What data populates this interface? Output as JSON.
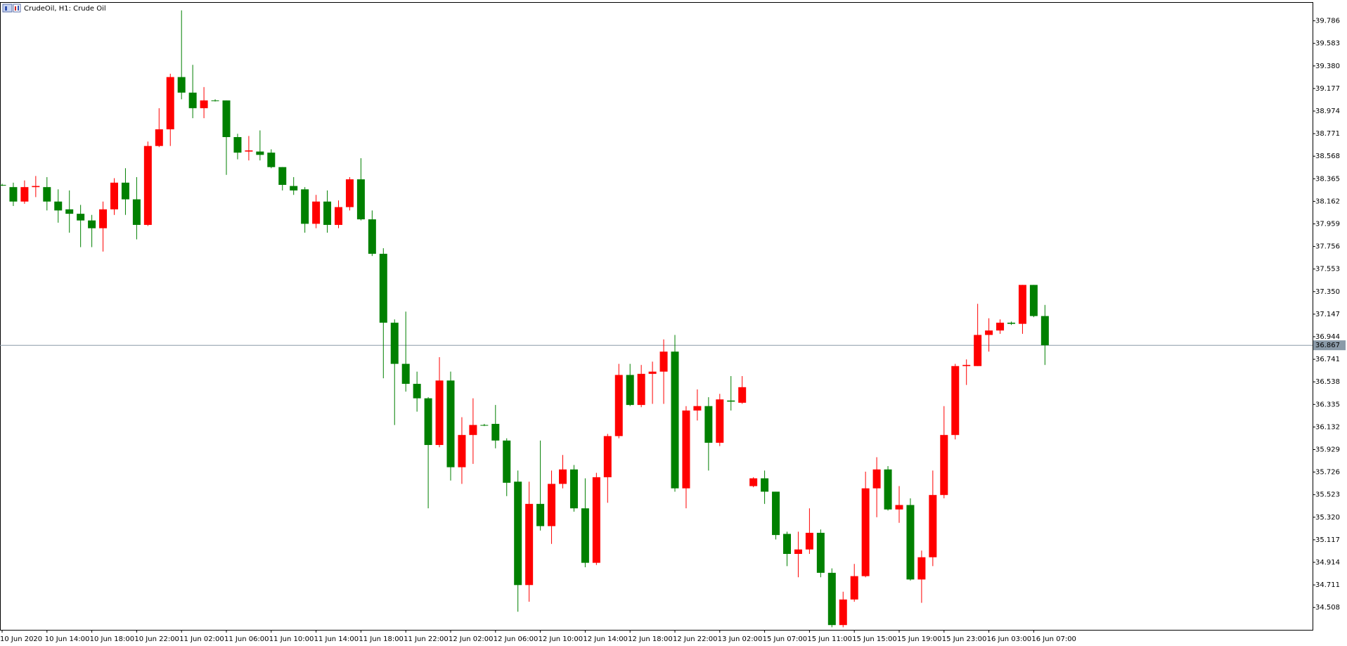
{
  "chart_data": {
    "type": "candlestick",
    "title": "CrudeOil, H1:  Crude Oil",
    "up_color": "#ff0000",
    "down_color": "#008000",
    "categories": [
      "10 Jun 2020",
      null,
      null,
      null,
      "10 Jun 14:00",
      null,
      null,
      null,
      "10 Jun 18:00",
      null,
      null,
      null,
      "10 Jun 22:00",
      null,
      null,
      null,
      "11 Jun 02:00",
      null,
      null,
      null,
      "11 Jun 06:00",
      null,
      null,
      null,
      "11 Jun 10:00",
      null,
      null,
      null,
      "11 Jun 14:00",
      null,
      null,
      null,
      "11 Jun 18:00",
      null,
      null,
      null,
      "11 Jun 22:00",
      null,
      null,
      null,
      "12 Jun 02:00",
      null,
      null,
      null,
      "12 Jun 06:00",
      null,
      null,
      null,
      "12 Jun 10:00",
      null,
      null,
      null,
      "12 Jun 14:00",
      null,
      null,
      null,
      "12 Jun 18:00",
      null,
      null,
      null,
      "12 Jun 22:00",
      null,
      null,
      null,
      "13 Jun 02:00",
      null,
      null,
      null,
      "15 Jun 07:00",
      null,
      null,
      null,
      "15 Jun 11:00",
      null,
      null,
      null,
      "15 Jun 15:00",
      null,
      null,
      null,
      "15 Jun 19:00",
      null,
      null,
      null,
      "15 Jun 23:00",
      null,
      null,
      null,
      "16 Jun 03:00",
      null,
      null,
      null,
      "16 Jun 07:00",
      null
    ],
    "open": [
      38.31,
      38.29,
      38.16,
      38.29,
      38.29,
      38.16,
      38.09,
      38.05,
      37.99,
      37.92,
      38.09,
      38.33,
      38.18,
      37.95,
      38.66,
      38.81,
      39.28,
      39.14,
      39.0,
      39.07,
      39.07,
      38.74,
      38.61,
      38.61,
      38.6,
      38.47,
      38.3,
      38.27,
      37.96,
      38.16,
      37.95,
      38.11,
      38.36,
      38.0,
      37.69,
      37.07,
      36.7,
      36.52,
      36.39,
      35.97,
      36.55,
      35.77,
      36.06,
      36.15,
      36.16,
      36.01,
      35.64,
      34.71,
      35.44,
      35.24,
      35.62,
      35.75,
      35.4,
      34.91,
      35.68,
      36.05,
      36.6,
      36.33,
      36.61,
      36.63,
      36.81,
      35.58,
      36.28,
      36.32,
      35.99,
      36.37,
      36.35,
      35.6,
      35.67,
      35.55,
      35.17,
      34.99,
      35.03,
      35.18,
      34.82,
      34.35,
      34.58,
      34.79,
      35.58,
      35.75,
      35.39,
      35.43,
      34.76,
      34.96,
      35.52,
      36.06,
      36.68,
      36.68,
      36.96,
      37.0,
      37.07,
      37.06,
      37.41,
      37.13
    ],
    "high": [
      38.32,
      38.33,
      38.35,
      38.39,
      38.38,
      38.27,
      38.26,
      38.13,
      38.04,
      38.16,
      38.37,
      38.46,
      38.38,
      38.7,
      39.0,
      39.31,
      39.88,
      39.39,
      39.19,
      39.08,
      39.07,
      38.77,
      38.75,
      38.8,
      38.63,
      38.47,
      38.38,
      38.29,
      38.22,
      38.26,
      38.17,
      38.38,
      38.55,
      38.08,
      37.74,
      37.1,
      37.17,
      36.63,
      36.4,
      36.76,
      36.63,
      36.22,
      36.39,
      36.16,
      36.33,
      36.03,
      35.74,
      35.64,
      36.01,
      35.74,
      35.88,
      35.79,
      35.67,
      35.72,
      36.07,
      36.7,
      36.7,
      36.69,
      36.72,
      36.92,
      36.96,
      36.32,
      36.47,
      36.4,
      36.43,
      36.59,
      36.59,
      35.68,
      35.74,
      35.55,
      35.19,
      35.19,
      35.4,
      35.21,
      34.86,
      34.65,
      34.9,
      35.73,
      35.86,
      35.78,
      35.6,
      35.49,
      35.02,
      35.74,
      36.32,
      36.7,
      36.74,
      37.24,
      37.11,
      37.1,
      37.08,
      37.41,
      37.41,
      37.23
    ],
    "low": [
      38.3,
      38.12,
      38.14,
      38.2,
      38.08,
      37.97,
      37.88,
      37.75,
      37.75,
      37.71,
      38.04,
      38.04,
      37.82,
      37.94,
      38.65,
      38.66,
      39.08,
      38.91,
      38.91,
      39.06,
      38.4,
      38.54,
      38.53,
      38.53,
      38.46,
      38.26,
      38.22,
      37.88,
      37.92,
      37.88,
      37.92,
      38.08,
      37.99,
      37.67,
      36.57,
      36.15,
      36.45,
      36.27,
      35.4,
      35.95,
      35.65,
      35.62,
      35.8,
      36.14,
      35.94,
      35.51,
      34.47,
      34.56,
      35.2,
      35.08,
      35.58,
      35.37,
      34.87,
      34.89,
      35.45,
      36.03,
      36.32,
      36.31,
      36.34,
      36.34,
      35.55,
      35.4,
      36.19,
      35.74,
      35.96,
      36.28,
      36.34,
      35.59,
      35.44,
      35.12,
      34.88,
      34.78,
      34.99,
      34.78,
      34.33,
      34.33,
      34.56,
      34.78,
      35.32,
      35.38,
      35.27,
      34.75,
      34.55,
      34.88,
      35.49,
      36.02,
      36.51,
      36.68,
      36.81,
      36.97,
      37.05,
      36.97,
      37.12,
      36.69
    ],
    "close": [
      38.31,
      38.16,
      38.29,
      38.3,
      38.16,
      38.08,
      38.05,
      37.99,
      37.92,
      38.09,
      38.33,
      38.18,
      37.95,
      38.66,
      38.81,
      39.28,
      39.14,
      39.0,
      39.07,
      39.07,
      38.74,
      38.6,
      38.62,
      38.58,
      38.47,
      38.31,
      38.26,
      37.96,
      38.16,
      37.95,
      38.11,
      38.36,
      38.0,
      37.69,
      37.07,
      36.7,
      36.52,
      36.39,
      35.97,
      36.55,
      35.77,
      36.06,
      36.15,
      36.15,
      36.01,
      35.63,
      34.71,
      35.44,
      35.24,
      35.62,
      35.75,
      35.4,
      34.91,
      35.68,
      36.05,
      36.6,
      36.33,
      36.61,
      36.63,
      36.81,
      35.58,
      36.28,
      36.32,
      35.99,
      36.38,
      36.36,
      36.49,
      35.67,
      35.55,
      35.16,
      34.99,
      35.03,
      35.18,
      34.82,
      34.35,
      34.58,
      34.79,
      35.58,
      35.75,
      35.39,
      35.43,
      34.76,
      34.96,
      35.52,
      36.06,
      36.68,
      36.69,
      36.96,
      37.0,
      37.07,
      37.06,
      37.41,
      37.13,
      36.867
    ],
    "last_price": 36.867,
    "ylim": [
      34.307,
      39.948
    ],
    "yticks": [
      39.786,
      39.583,
      {
        "value": 39.38,
        "label": "39.380"
      },
      39.177,
      38.974,
      38.771,
      38.568,
      38.365,
      38.162,
      37.959,
      37.756,
      37.553,
      {
        "value": 37.35,
        "label": "37.350"
      },
      37.147,
      36.944,
      36.741,
      36.538,
      36.335,
      36.132,
      35.929,
      35.726,
      35.523,
      {
        "value": 35.32,
        "label": "35.320"
      },
      35.117,
      34.914,
      34.711,
      34.508
    ]
  }
}
